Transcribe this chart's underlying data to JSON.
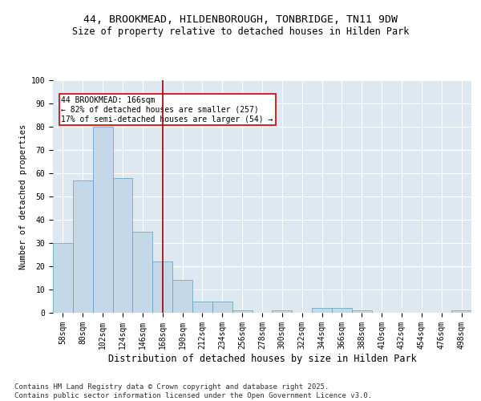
{
  "title1": "44, BROOKMEAD, HILDENBOROUGH, TONBRIDGE, TN11 9DW",
  "title2": "Size of property relative to detached houses in Hilden Park",
  "xlabel": "Distribution of detached houses by size in Hilden Park",
  "ylabel": "Number of detached properties",
  "categories": [
    "58sqm",
    "80sqm",
    "102sqm",
    "124sqm",
    "146sqm",
    "168sqm",
    "190sqm",
    "212sqm",
    "234sqm",
    "256sqm",
    "278sqm",
    "300sqm",
    "322sqm",
    "344sqm",
    "366sqm",
    "388sqm",
    "410sqm",
    "432sqm",
    "454sqm",
    "476sqm",
    "498sqm"
  ],
  "values": [
    30,
    57,
    80,
    58,
    35,
    22,
    14,
    5,
    5,
    1,
    0,
    1,
    0,
    2,
    2,
    1,
    0,
    0,
    0,
    0,
    1
  ],
  "bar_color": "#c5d8e8",
  "bar_edge_color": "#5a9fc4",
  "red_line_index": 5,
  "annotation_text": "44 BROOKMEAD: 166sqm\n← 82% of detached houses are smaller (257)\n17% of semi-detached houses are larger (54) →",
  "annotation_box_color": "#ffffff",
  "annotation_box_edge_color": "#cc0000",
  "vline_color": "#990000",
  "background_color": "#dde8f0",
  "grid_color": "#ffffff",
  "footer_text": "Contains HM Land Registry data © Crown copyright and database right 2025.\nContains public sector information licensed under the Open Government Licence v3.0.",
  "ylim": [
    0,
    100
  ],
  "yticks": [
    0,
    10,
    20,
    30,
    40,
    50,
    60,
    70,
    80,
    90,
    100
  ],
  "title1_fontsize": 9.5,
  "title2_fontsize": 8.5,
  "xlabel_fontsize": 8.5,
  "ylabel_fontsize": 7.5,
  "tick_fontsize": 7,
  "annot_fontsize": 7,
  "footer_fontsize": 6.5
}
